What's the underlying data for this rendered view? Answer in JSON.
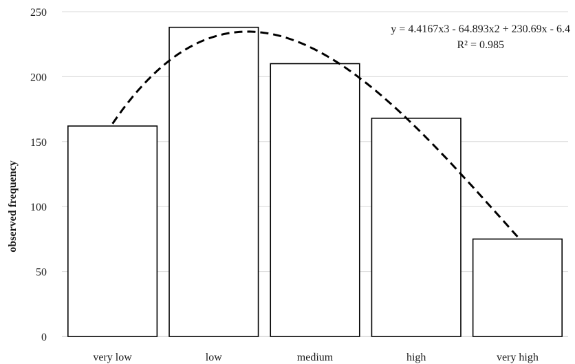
{
  "chart_data": {
    "type": "bar",
    "categories": [
      "very low",
      "low",
      "medium",
      "high",
      "very high"
    ],
    "values": [
      162,
      238,
      210,
      168,
      75
    ],
    "ylabel": "observed frequency",
    "xlabel": "",
    "ylim": [
      0,
      250
    ],
    "yticks": [
      0,
      50,
      100,
      150,
      200,
      250
    ],
    "grid": true,
    "trendline": {
      "type": "polynomial",
      "order": 3,
      "equation": "y = 4.4167x3 - 64.893x2 + 230.69x - 6.4",
      "r_squared": "R² = 0.985",
      "coefficients": [
        4.4167,
        -64.893,
        230.69,
        -6.4
      ],
      "style": "dashed"
    }
  }
}
